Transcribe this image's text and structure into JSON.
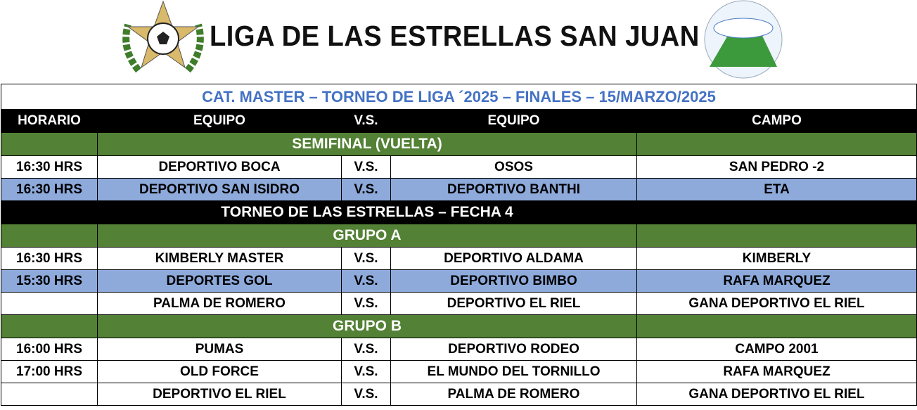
{
  "header": {
    "title": "LIGA DE LAS ESTRELLAS SAN JUAN"
  },
  "table": {
    "title": "CAT. MASTER – TORNEO DE LIGA ´2025 – FINALES – 15/MARZO/2025",
    "columns": [
      "HORARIO",
      "EQUIPO",
      "V.S.",
      "EQUIPO",
      "CAMPO"
    ],
    "sections": [
      {
        "heading": "SEMIFINAL (VUELTA)",
        "highlight_rows": [
          1
        ],
        "matches": [
          [
            "16:30 HRS",
            "DEPORTIVO BOCA",
            "V.S.",
            "OSOS",
            "SAN PEDRO -2"
          ],
          [
            "16:30 HRS",
            "DEPORTIVO SAN ISIDRO",
            "V.S.",
            "DEPORTIVO BANTHI",
            "ETA"
          ]
        ]
      },
      {
        "heading": "TORNEO DE LAS ESTRELLAS – FECHA 4",
        "groups": [
          {
            "heading": "GRUPO A",
            "highlight_rows": [
              1
            ],
            "matches": [
              [
                "16:30 HRS",
                "KIMBERLY MASTER",
                "V.S.",
                "DEPORTIVO ALDAMA",
                "KIMBERLY"
              ],
              [
                "15:30 HRS",
                "DEPORTES GOL",
                "V.S.",
                "DEPORTIVO BIMBO",
                "RAFA MARQUEZ"
              ],
              [
                null,
                "PALMA DE ROMERO",
                "V.S.",
                "DEPORTIVO EL RIEL",
                "GANA DEPORTIVO EL RIEL"
              ]
            ]
          },
          {
            "heading": "GRUPO B",
            "highlight_rows": [],
            "matches": [
              [
                "16:00 HRS",
                "PUMAS",
                "V.S.",
                "DEPORTIVO RODEO",
                "CAMPO 2001"
              ],
              [
                "17:00 HRS",
                "OLD FORCE",
                "V.S.",
                "EL MUNDO DEL TORNILLO",
                "RAFA MARQUEZ"
              ],
              [
                null,
                "DEPORTIVO EL RIEL",
                "V.S.",
                "PALMA DE ROMERO",
                "GANA DEPORTIVO EL RIEL"
              ]
            ]
          }
        ]
      }
    ]
  }
}
